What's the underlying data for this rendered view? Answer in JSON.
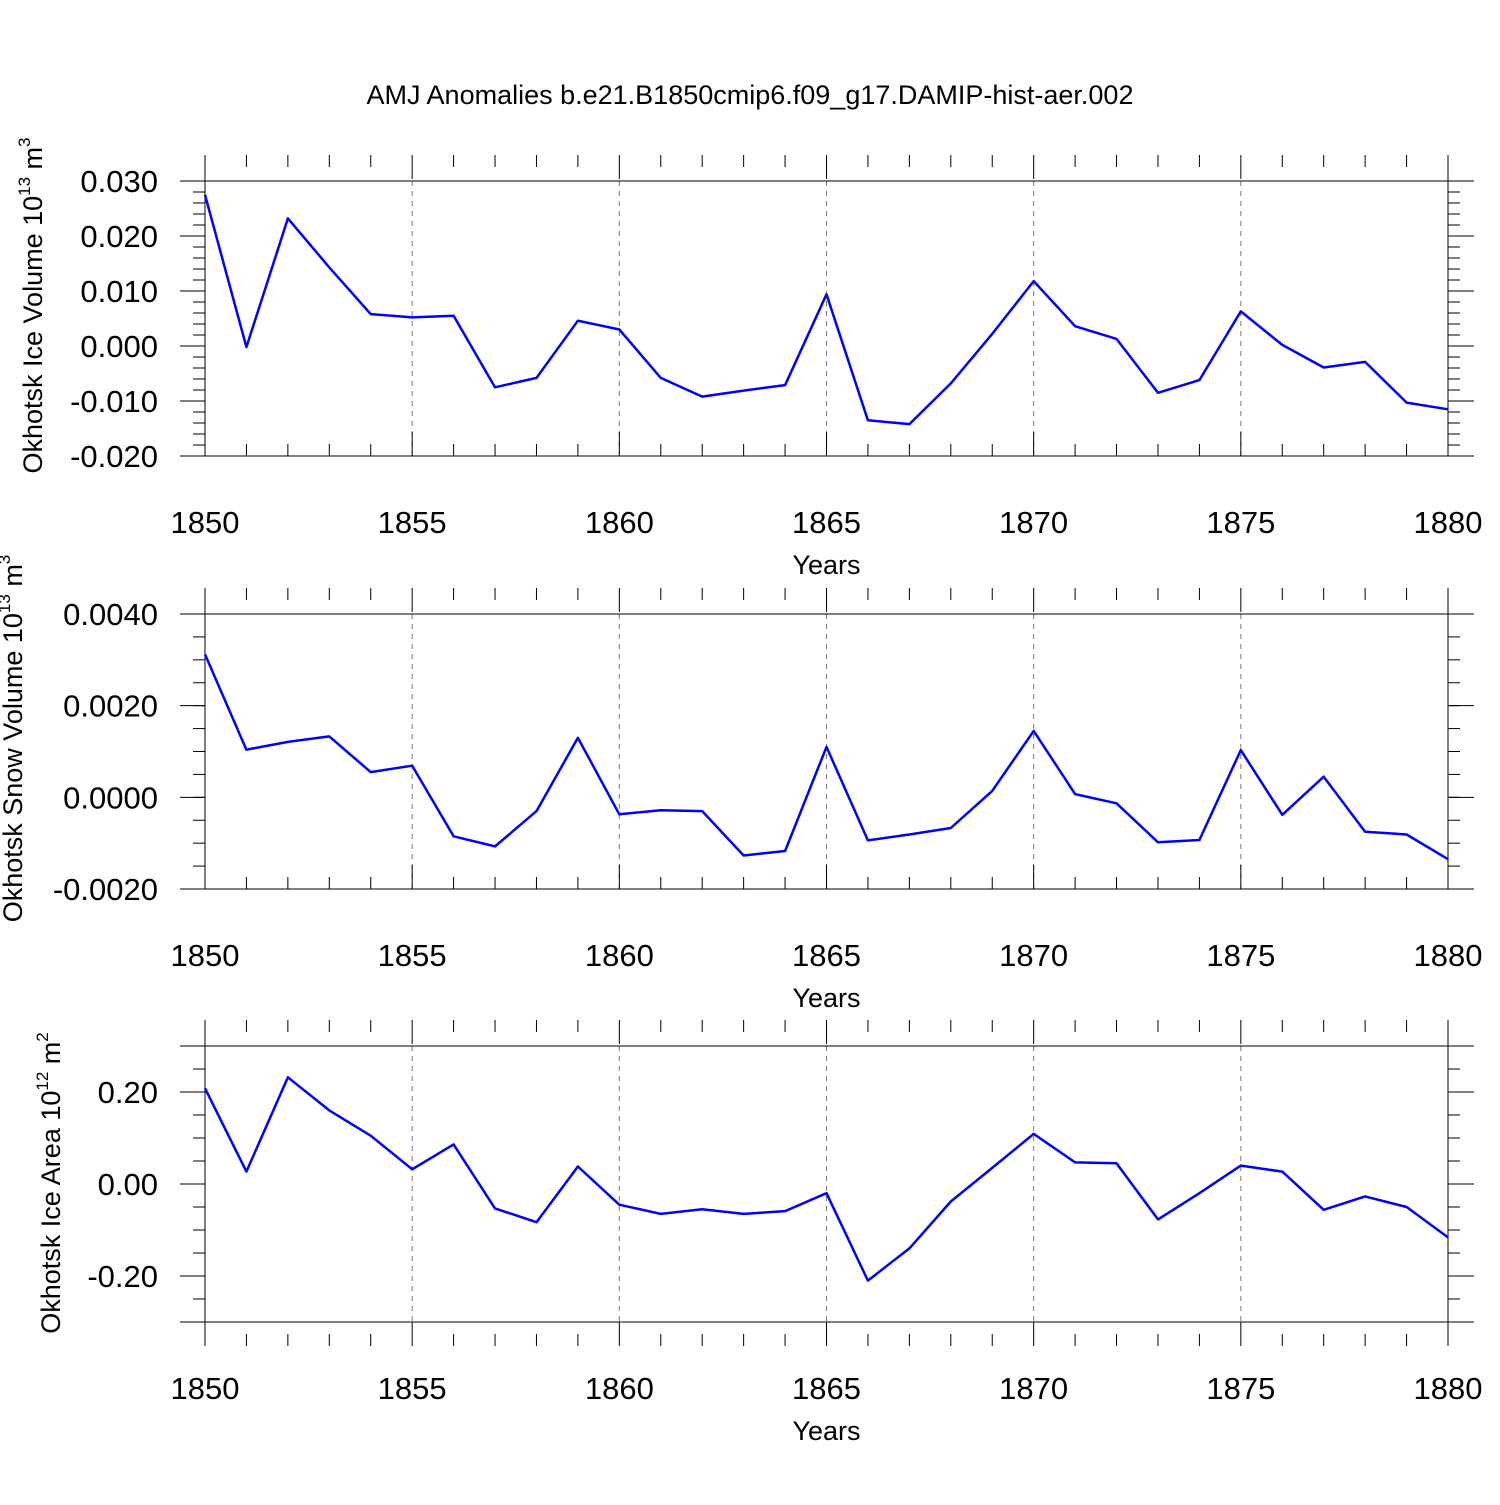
{
  "title": "AMJ Anomalies b.e21.B1850cmip6.f09_g17.DAMIP-hist-aer.002",
  "chart_data": [
    {
      "type": "line",
      "ylabel": {
        "text": "Okhotsk Ice Volume 10",
        "sup1": "13",
        "unit": " m",
        "sup2": "3"
      },
      "xlabel": "Years",
      "xlim": [
        1850,
        1880
      ],
      "ylim": [
        -0.02,
        0.03
      ],
      "x_ticks": [
        "1850",
        "1855",
        "1860",
        "1865",
        "1870",
        "1875",
        "1880"
      ],
      "y_ticks": [
        {
          "value": 0.03,
          "label": "0.030"
        },
        {
          "value": 0.02,
          "label": "0.020"
        },
        {
          "value": 0.01,
          "label": "0.010"
        },
        {
          "value": 0.0,
          "label": "0.000"
        },
        {
          "value": -0.01,
          "label": "-0.010"
        },
        {
          "value": -0.02,
          "label": "-0.020"
        }
      ],
      "y_minor_step": 0.002,
      "grid": "vertical dashed at major x ticks",
      "color": "#0000ff",
      "x": [
        1850,
        1851,
        1852,
        1853,
        1854,
        1855,
        1856,
        1857,
        1858,
        1859,
        1860,
        1861,
        1862,
        1863,
        1864,
        1865,
        1866,
        1867,
        1868,
        1869,
        1870,
        1871,
        1872,
        1873,
        1874,
        1875,
        1876,
        1877,
        1878,
        1879,
        1880
      ],
      "values": [
        0.0275,
        -0.0002,
        0.0232,
        0.0143,
        0.0058,
        0.0052,
        0.0055,
        -0.0075,
        -0.0058,
        0.0046,
        0.003,
        -0.0058,
        -0.0092,
        -0.0081,
        -0.0071,
        0.0094,
        -0.0135,
        -0.0142,
        -0.0068,
        0.0022,
        0.0118,
        0.0036,
        0.0013,
        -0.0085,
        -0.0062,
        0.0063,
        0.0002,
        -0.0039,
        -0.0029,
        -0.0103,
        -0.0115
      ]
    },
    {
      "type": "line",
      "ylabel": {
        "text": "Okhotsk Snow Volume 10",
        "sup1": "13",
        "unit": " m",
        "sup2": "3"
      },
      "xlabel": "Years",
      "xlim": [
        1850,
        1880
      ],
      "ylim": [
        -0.002,
        0.004
      ],
      "x_ticks": [
        "1850",
        "1855",
        "1860",
        "1865",
        "1870",
        "1875",
        "1880"
      ],
      "y_ticks": [
        {
          "value": 0.004,
          "label": "0.0040"
        },
        {
          "value": 0.002,
          "label": "0.0020"
        },
        {
          "value": 0.0,
          "label": "0.0000"
        },
        {
          "value": -0.002,
          "label": "-0.0020"
        }
      ],
      "y_minor_step": 0.0005,
      "grid": "vertical dashed at major x ticks",
      "color": "#0000ff",
      "x": [
        1850,
        1851,
        1852,
        1853,
        1854,
        1855,
        1856,
        1857,
        1858,
        1859,
        1860,
        1861,
        1862,
        1863,
        1864,
        1865,
        1866,
        1867,
        1868,
        1869,
        1870,
        1871,
        1872,
        1873,
        1874,
        1875,
        1876,
        1877,
        1878,
        1879,
        1880
      ],
      "values": [
        0.00312,
        0.00104,
        0.00121,
        0.00133,
        0.00055,
        0.00069,
        -0.00085,
        -0.00107,
        -0.0003,
        0.0013,
        -0.00037,
        -0.00028,
        -0.0003,
        -0.00127,
        -0.00117,
        0.0011,
        -0.00094,
        -0.00081,
        -0.00067,
        0.00014,
        0.00145,
        7e-05,
        -0.00013,
        -0.00098,
        -0.00093,
        0.00103,
        -0.00038,
        0.00045,
        -0.00075,
        -0.00081,
        -0.00135
      ]
    },
    {
      "type": "line",
      "ylabel": {
        "text": "Okhotsk Ice Area 10",
        "sup1": "12",
        "unit": " m",
        "sup2": "2"
      },
      "xlabel": "Years",
      "xlim": [
        1850,
        1880
      ],
      "ylim": [
        -0.3,
        0.3
      ],
      "x_ticks": [
        "1850",
        "1855",
        "1860",
        "1865",
        "1870",
        "1875",
        "1880"
      ],
      "y_ticks": [
        {
          "value": 0.2,
          "label": "0.20"
        },
        {
          "value": 0.0,
          "label": "0.00"
        },
        {
          "value": -0.2,
          "label": "-0.20"
        }
      ],
      "y_minor_step": 0.05,
      "grid": "vertical dashed at major x ticks",
      "color": "#0000ff",
      "x": [
        1850,
        1851,
        1852,
        1853,
        1854,
        1855,
        1856,
        1857,
        1858,
        1859,
        1860,
        1861,
        1862,
        1863,
        1864,
        1865,
        1866,
        1867,
        1868,
        1869,
        1870,
        1871,
        1872,
        1873,
        1874,
        1875,
        1876,
        1877,
        1878,
        1879,
        1880
      ],
      "values": [
        0.208,
        0.027,
        0.232,
        0.16,
        0.105,
        0.032,
        0.086,
        -0.053,
        -0.083,
        0.038,
        -0.045,
        -0.065,
        -0.055,
        -0.065,
        -0.059,
        -0.02,
        -0.21,
        -0.14,
        -0.038,
        0.035,
        0.109,
        0.047,
        0.045,
        -0.077,
        -0.02,
        0.04,
        0.027,
        -0.056,
        -0.027,
        -0.05,
        -0.116
      ]
    }
  ]
}
